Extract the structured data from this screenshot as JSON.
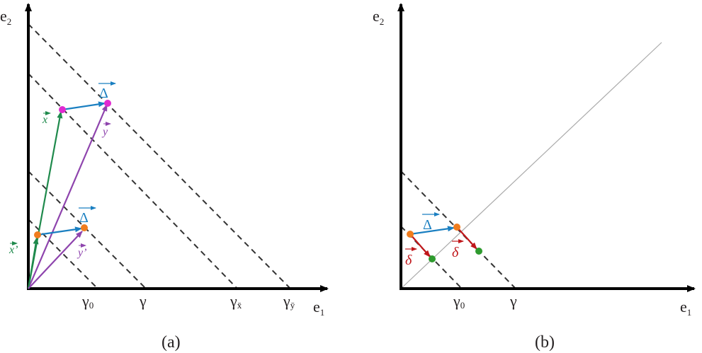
{
  "panel_a": {
    "caption": "(a)",
    "axis_x": "e",
    "axis_x_sub": "1",
    "axis_y": "e",
    "axis_y_sub": "2",
    "tick_gamma0": "γ",
    "tick_gamma0_sub": "0",
    "tick_gamma": "γ",
    "tick_gamma_x": "γ",
    "tick_gamma_x_sub": "x̄",
    "tick_gamma_y": "γ",
    "tick_gamma_y_sub": "ȳ",
    "vec_x": "x",
    "vec_x_prime": "x’",
    "vec_y": "y",
    "vec_y_prime": "y’",
    "delta_top": "Δ",
    "delta_bottom": "Δ"
  },
  "panel_b": {
    "caption": "(b)",
    "axis_x": "e",
    "axis_x_sub": "1",
    "axis_y": "e",
    "axis_y_sub": "2",
    "tick_gamma0": "γ",
    "tick_gamma0_sub": "0",
    "tick_gamma": "γ",
    "delta": "Δ",
    "small_delta_left": "δ",
    "small_delta_right": "δ"
  },
  "colors": {
    "green": "#1f8a4c",
    "purple": "#8e44ad",
    "blue": "#1a7fc1",
    "red": "#c0171b",
    "orange": "#f07c1e",
    "magenta": "#e02ad1",
    "dot_green": "#2e9a2e"
  }
}
